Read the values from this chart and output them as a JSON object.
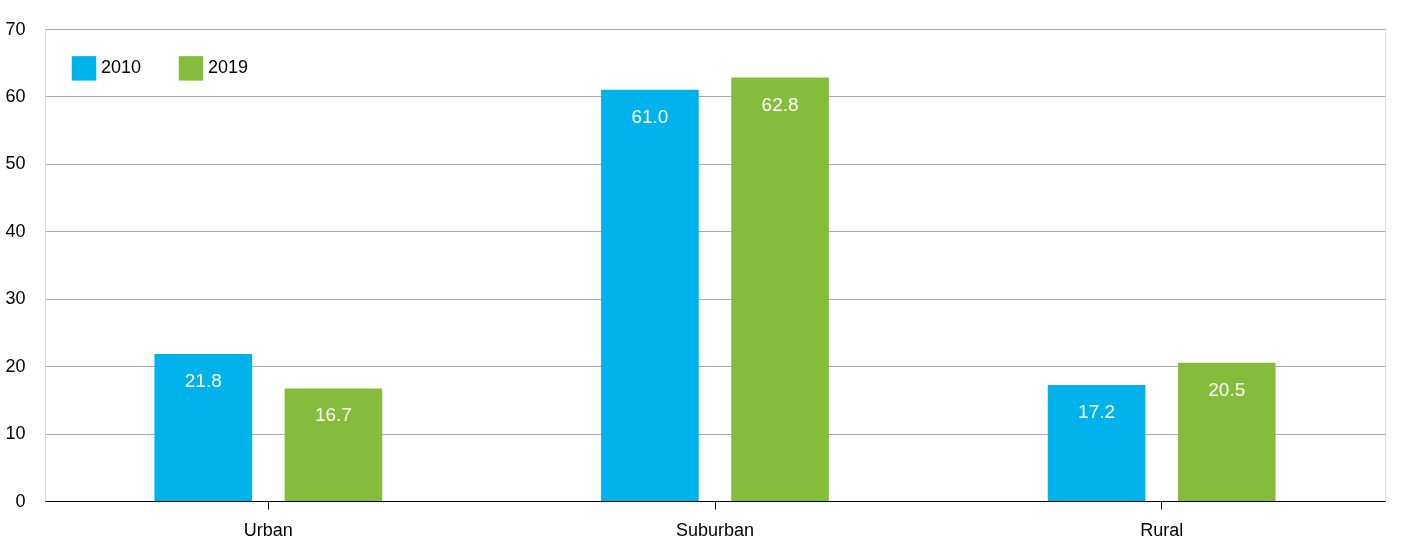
{
  "chart_data": {
    "type": "bar",
    "categories": [
      "Urban",
      "Suburban",
      "Rural"
    ],
    "series": [
      {
        "name": "2010",
        "color": "#00b2eb",
        "values": [
          21.8,
          61.0,
          17.2
        ],
        "value_labels": [
          "21.8",
          "61.0",
          "17.2"
        ]
      },
      {
        "name": "2019",
        "color": "#86bc3c",
        "values": [
          16.7,
          62.8,
          20.5
        ],
        "value_labels": [
          "16.7",
          "62.8",
          "20.5"
        ]
      }
    ],
    "ylim": [
      0,
      70
    ],
    "yticks": [
      0,
      10,
      20,
      30,
      40,
      50,
      60,
      70
    ],
    "grid": "y",
    "legend": "top left"
  }
}
